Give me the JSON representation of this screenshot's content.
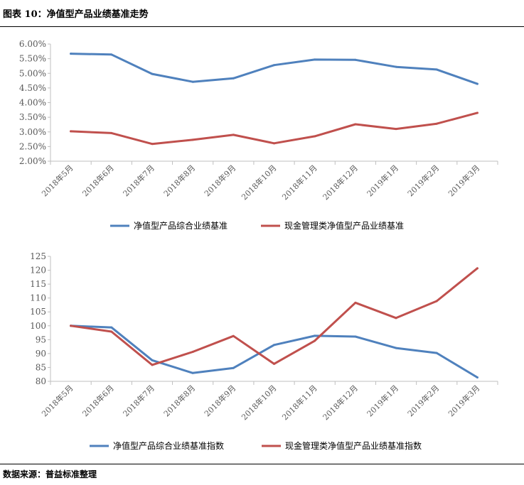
{
  "figure_title": "图表 10：净值型产品业绩基准走势",
  "source": "数据来源：普益标准整理",
  "colors": {
    "blue": "#4F81BD",
    "red": "#C0504D",
    "grid_axis": "#BFBFBF",
    "tick_text": "#595959"
  },
  "chart_data": [
    {
      "type": "line",
      "categories": [
        "2018年5月",
        "2018年6月",
        "2018年7月",
        "2018年8月",
        "2018年9月",
        "2018年10月",
        "2018年11月",
        "2018年12月",
        "2019年1月",
        "2019年2月",
        "2019年3月"
      ],
      "ylim": [
        0.02,
        0.06
      ],
      "yticks": [
        0.02,
        0.025,
        0.03,
        0.035,
        0.04,
        0.045,
        0.05,
        0.055,
        0.06
      ],
      "ytick_labels": [
        "2.00%",
        "2.50%",
        "3.00%",
        "3.50%",
        "4.00%",
        "4.50%",
        "5.00%",
        "5.50%",
        "6.00%"
      ],
      "legend_position": "bottom",
      "series": [
        {
          "name": "净值型产品综合业绩基准",
          "color": "#4F81BD",
          "values": [
            0.0567,
            0.0564,
            0.0498,
            0.0471,
            0.0483,
            0.0528,
            0.0547,
            0.0546,
            0.0522,
            0.0513,
            0.0464
          ]
        },
        {
          "name": "现金管理类净值型产品业绩基准",
          "color": "#C0504D",
          "values": [
            0.0302,
            0.0296,
            0.0259,
            0.0273,
            0.029,
            0.0261,
            0.0285,
            0.0326,
            0.031,
            0.0328,
            0.0365
          ]
        }
      ]
    },
    {
      "type": "line",
      "categories": [
        "2018年5月",
        "2018年6月",
        "2018年7月",
        "2018年8月",
        "2018年9月",
        "2018年10月",
        "2018年11月",
        "2018年12月",
        "2019年1月",
        "2019年2月",
        "2019年3月"
      ],
      "ylim": [
        80,
        125
      ],
      "yticks": [
        80,
        85,
        90,
        95,
        100,
        105,
        110,
        115,
        120,
        125
      ],
      "ytick_labels": [
        "80",
        "85",
        "90",
        "95",
        "100",
        "105",
        "110",
        "115",
        "120",
        "125"
      ],
      "legend_position": "bottom",
      "series": [
        {
          "name": "净值型产品综合业绩基准指数",
          "color": "#4F81BD",
          "values": [
            100.0,
            99.4,
            87.6,
            83.0,
            84.8,
            93.1,
            96.4,
            96.1,
            92.0,
            90.2,
            81.4
          ]
        },
        {
          "name": "现金管理类净值型产品业绩基准指数",
          "color": "#C0504D",
          "values": [
            100.0,
            97.9,
            85.9,
            90.6,
            96.3,
            86.3,
            94.6,
            108.3,
            102.8,
            108.9,
            120.7
          ]
        }
      ]
    }
  ]
}
